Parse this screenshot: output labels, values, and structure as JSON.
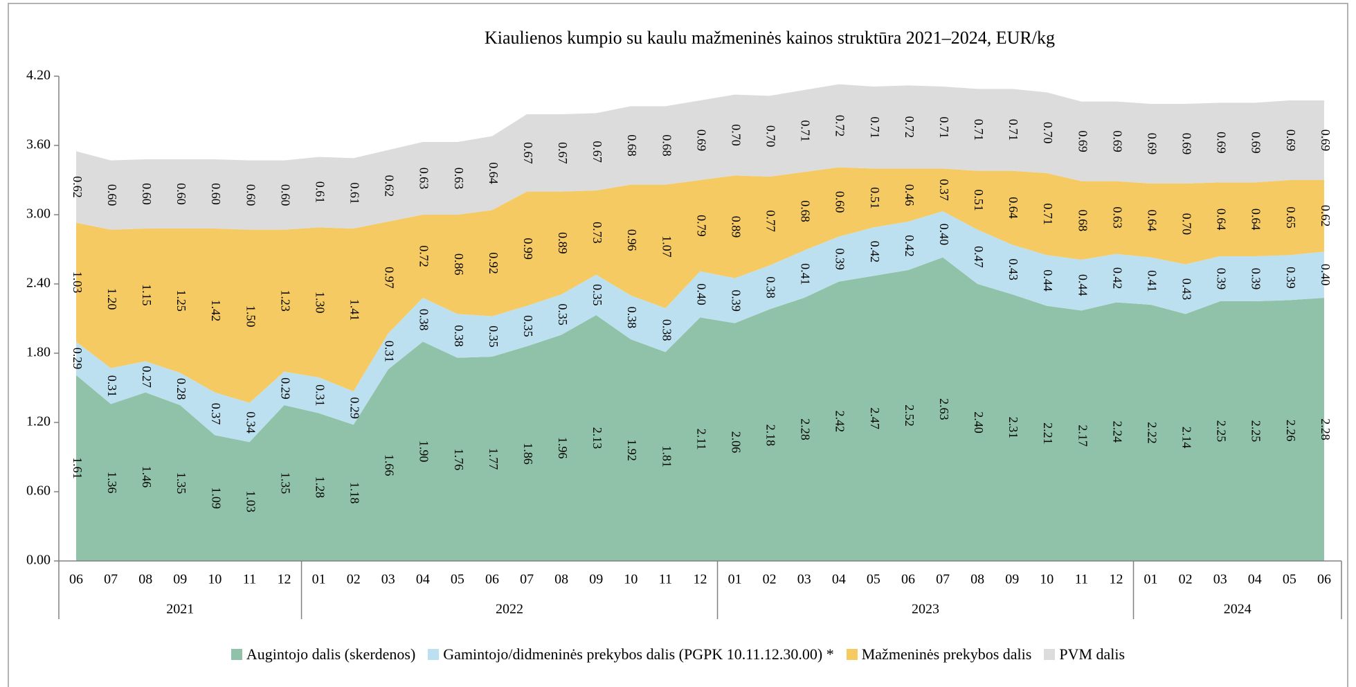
{
  "chart_data": {
    "type": "stacked_area",
    "title": "Kiaulienos kumpio su kaulu mažmeninės kainos struktūra 2021–2024, EUR/kg",
    "category_groups": [
      {
        "name": "2021",
        "categories": [
          "06",
          "07",
          "08",
          "09",
          "10",
          "11",
          "12"
        ]
      },
      {
        "name": "2022",
        "categories": [
          "01",
          "02",
          "03",
          "04",
          "05",
          "06",
          "07",
          "08",
          "09",
          "10",
          "11",
          "12"
        ]
      },
      {
        "name": "2023",
        "categories": [
          "01",
          "02",
          "03",
          "04",
          "05",
          "06",
          "07",
          "08",
          "09",
          "10",
          "11",
          "12"
        ]
      },
      {
        "name": "2024",
        "categories": [
          "01",
          "02",
          "03",
          "04",
          "05",
          "06"
        ]
      }
    ],
    "ylim": [
      0,
      4.2
    ],
    "yticks": [
      {
        "value": 0,
        "label": "0.00"
      },
      {
        "value": 0.6,
        "label": "0.60"
      },
      {
        "value": 1.2,
        "label": "1.20"
      },
      {
        "value": 1.8,
        "label": "1.80"
      },
      {
        "value": 2.4,
        "label": "2.40"
      },
      {
        "value": 3.0,
        "label": "3.00"
      },
      {
        "value": 3.6,
        "label": "3.60"
      },
      {
        "value": 4.2,
        "label": "4.20"
      }
    ],
    "grid": false,
    "legend": "bottom",
    "series": [
      {
        "name": "Augintojo dalis (skerdenos)",
        "color": "#8fc2a8",
        "values": [
          1.61,
          1.36,
          1.46,
          1.35,
          1.09,
          1.03,
          1.35,
          1.28,
          1.18,
          1.66,
          1.9,
          1.76,
          1.77,
          1.86,
          1.96,
          2.13,
          1.92,
          1.81,
          2.11,
          2.06,
          2.18,
          2.28,
          2.42,
          2.47,
          2.52,
          2.63,
          2.4,
          2.31,
          2.21,
          2.17,
          2.24,
          2.22,
          2.14,
          2.25,
          2.25,
          2.26,
          2.28
        ],
        "value_labels": [
          "1.61",
          "1.36",
          "1.46",
          "1.35",
          "1.09",
          "1.03",
          "1.35",
          "1.28",
          "1.18",
          "1.66",
          "1.90",
          "1.76",
          "1.77",
          "1.86",
          "1.96",
          "2.13",
          "1.92",
          "1.81",
          "2.11",
          "2.06",
          "2.18",
          "2.28",
          "2.42",
          "2.47",
          "2.52",
          "2.63",
          "2.40",
          "2.31",
          "2.21",
          "2.17",
          "2.24",
          "2.22",
          "2.14",
          "2.25",
          "2.25",
          "2.26",
          "2.28"
        ]
      },
      {
        "name": "Gamintojo/didmeninės prekybos dalis (PGPK 10.11.12.30.00) *",
        "color": "#bde0f0",
        "values": [
          0.29,
          0.31,
          0.27,
          0.28,
          0.37,
          0.34,
          0.29,
          0.31,
          0.29,
          0.31,
          0.38,
          0.38,
          0.35,
          0.35,
          0.35,
          0.35,
          0.38,
          0.38,
          0.4,
          0.39,
          0.38,
          0.41,
          0.39,
          0.42,
          0.42,
          0.4,
          0.47,
          0.43,
          0.44,
          0.44,
          0.42,
          0.41,
          0.43,
          0.39,
          0.39,
          0.39,
          0.4
        ],
        "value_labels": [
          "0.29",
          "0.31",
          "0.27",
          "0.28",
          "0.37",
          "0.34",
          "0.29",
          "0.31",
          "0.29",
          "0.31",
          "0.38",
          "0.38",
          "0.35",
          "0.35",
          "0.35",
          "0.35",
          "0.38",
          "0.38",
          "0.40",
          "0.39",
          "0.38",
          "0.41",
          "0.39",
          "0.42",
          "0.42",
          "0.40",
          "0.47",
          "0.43",
          "0.44",
          "0.44",
          "0.42",
          "0.41",
          "0.43",
          "0.39",
          "0.39",
          "0.39",
          "0.40"
        ]
      },
      {
        "name": "Mažmeninės prekybos dalis",
        "color": "#f5ca63",
        "values": [
          1.03,
          1.2,
          1.15,
          1.25,
          1.42,
          1.5,
          1.23,
          1.3,
          1.41,
          0.97,
          0.72,
          0.86,
          0.92,
          0.99,
          0.89,
          0.73,
          0.96,
          1.07,
          0.79,
          0.89,
          0.77,
          0.68,
          0.6,
          0.51,
          0.46,
          0.37,
          0.51,
          0.64,
          0.71,
          0.68,
          0.63,
          0.64,
          0.7,
          0.64,
          0.64,
          0.65,
          0.62
        ],
        "value_labels": [
          "1.03",
          "1.20",
          "1.15",
          "1.25",
          "1.42",
          "1.50",
          "1.23",
          "1.30",
          "1.41",
          "0.97",
          "0.72",
          "0.86",
          "0.92",
          "0.99",
          "0.89",
          "0.73",
          "0.96",
          "1.07",
          "0.79",
          "0.89",
          "0.77",
          "0.68",
          "0.60",
          "0.51",
          "0.46",
          "0.37",
          "0.51",
          "0.64",
          "0.71",
          "0.68",
          "0.63",
          "0.64",
          "0.70",
          "0.64",
          "0.64",
          "0.65",
          "0.62"
        ]
      },
      {
        "name": "PVM dalis",
        "color": "#dcdcdc",
        "values": [
          0.62,
          0.6,
          0.6,
          0.6,
          0.6,
          0.6,
          0.6,
          0.61,
          0.61,
          0.62,
          0.63,
          0.63,
          0.64,
          0.67,
          0.67,
          0.67,
          0.68,
          0.68,
          0.69,
          0.7,
          0.7,
          0.71,
          0.72,
          0.71,
          0.72,
          0.71,
          0.71,
          0.71,
          0.7,
          0.69,
          0.69,
          0.69,
          0.69,
          0.69,
          0.69,
          0.69,
          0.69
        ],
        "value_labels": [
          "0.62",
          "0.60",
          "0.60",
          "0.60",
          "0.60",
          "0.60",
          "0.60",
          "0.61",
          "0.61",
          "0.62",
          "0.63",
          "0.63",
          "0.64",
          "0.67",
          "0.67",
          "0.67",
          "0.68",
          "0.68",
          "0.69",
          "0.70",
          "0.70",
          "0.71",
          "0.72",
          "0.71",
          "0.72",
          "0.71",
          "0.71",
          "0.71",
          "0.70",
          "0.69",
          "0.69",
          "0.69",
          "0.69",
          "0.69",
          "0.69",
          "0.69",
          "0.69"
        ]
      }
    ]
  }
}
